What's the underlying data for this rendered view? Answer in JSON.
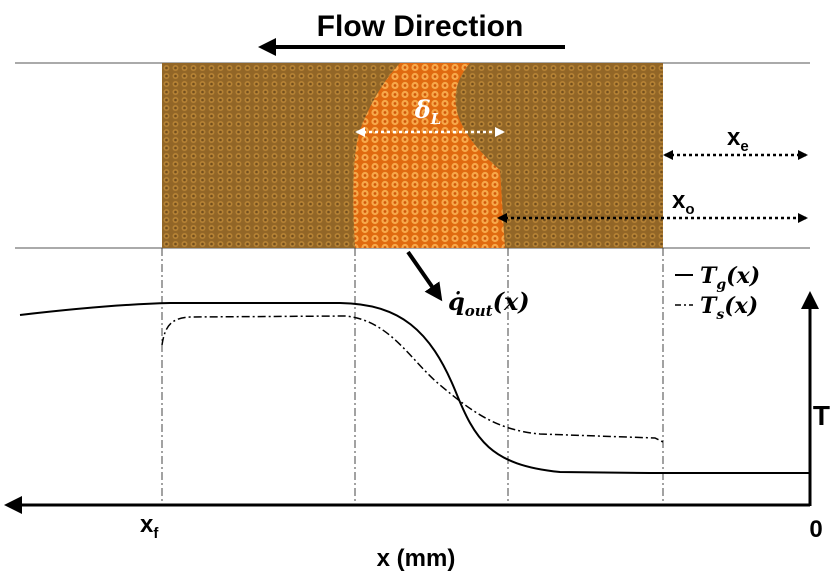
{
  "title": "Flow Direction",
  "flame_width": {
    "base": "δ",
    "sub": "L"
  },
  "positions": {
    "x_e": {
      "base": "x",
      "sub": "e"
    },
    "x_o": {
      "base": "x",
      "sub": "o"
    },
    "x_f": {
      "base": "x",
      "sub": "f"
    }
  },
  "heat_loss": {
    "base": "q̇",
    "sub": "out",
    "suffix": "(x)"
  },
  "legend": [
    {
      "base": "T",
      "sub": "g",
      "suffix": "(x)"
    },
    {
      "base": "T",
      "sub": "s",
      "suffix": "(x)"
    }
  ],
  "axes": {
    "y_label": "T",
    "x_label": "x (mm)",
    "origin": "0"
  }
}
